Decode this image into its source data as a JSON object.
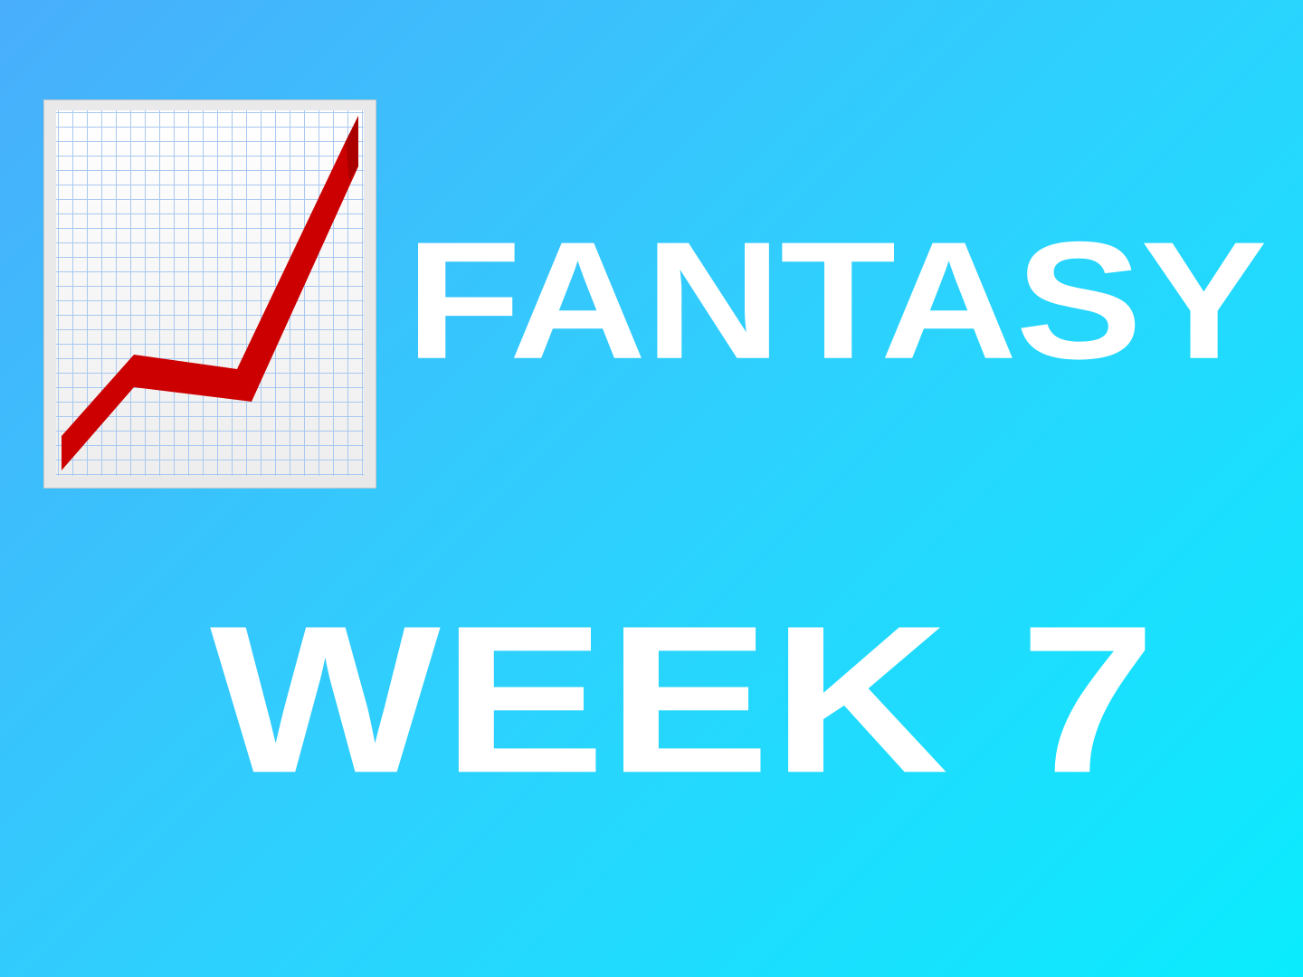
{
  "title": {
    "line1": "FANTASY",
    "line2": "WEEK 7"
  },
  "icon": {
    "name": "chart-increasing-icon",
    "trend_color": "#cc0000",
    "grid_color": "#a9c8f0",
    "paper_color": "#f6f6f6"
  },
  "colors": {
    "background_start": "#49aefc",
    "background_end": "#0aecfe",
    "text": "#ffffff"
  }
}
